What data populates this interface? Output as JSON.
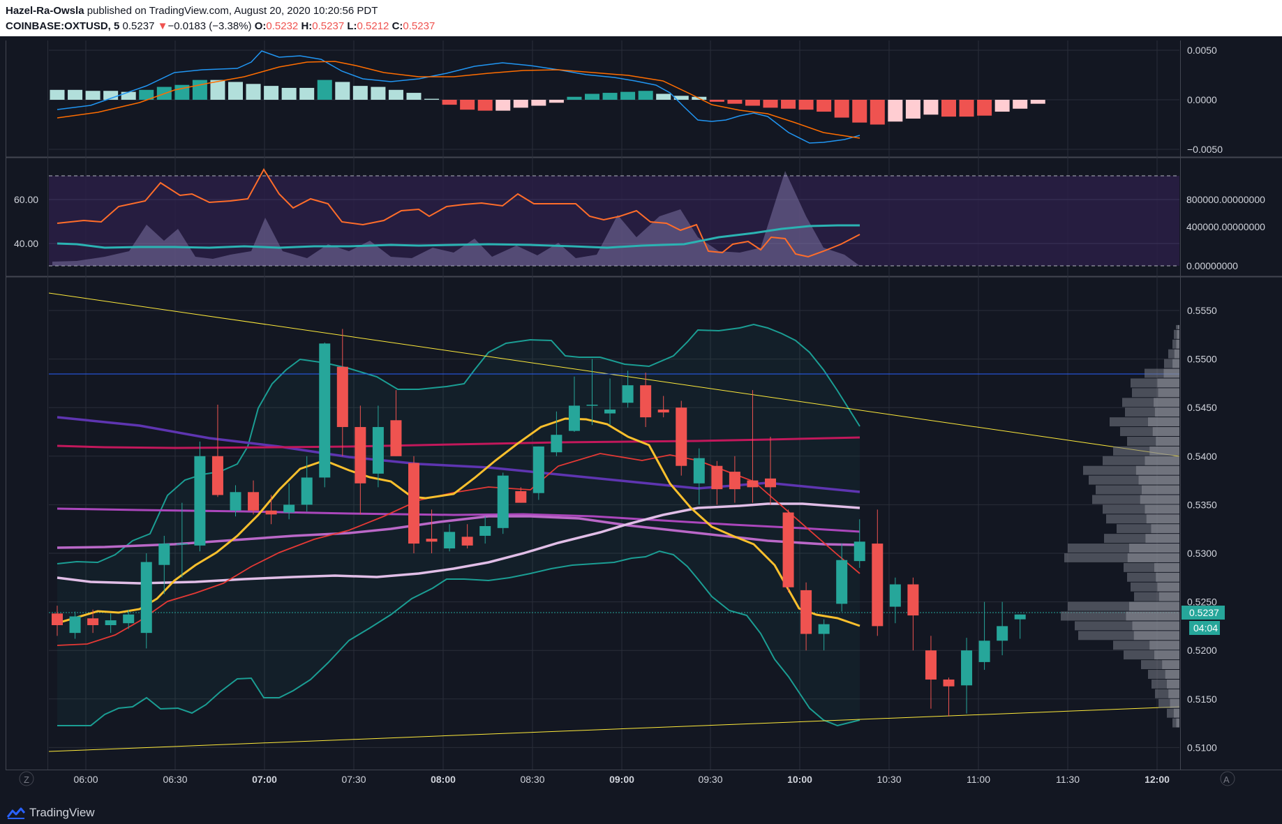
{
  "header": {
    "author": "Hazel-Ra-Owsla",
    "published": " published on TradingView.com, August 20, 2020 10:20:56 PDT",
    "symbol": "COINBASE:OXTUSD, 5",
    "last": "0.5237",
    "change_arrow": "▼",
    "change": "−0.0183 (−3.38%)",
    "o_label": "O:",
    "o": "0.5232",
    "h_label": "H:",
    "h": "0.5237",
    "l_label": "L:",
    "l": "0.5212",
    "c_label": "C:",
    "c": "0.5237"
  },
  "footer": {
    "brand": "TradingView",
    "left_btn": "Z",
    "right_btn": "A"
  },
  "colors": {
    "bg": "#131722",
    "up": "#26a69a",
    "down": "#ef5350",
    "grid": "#2a2e39"
  },
  "chart_data": [
    {
      "type": "candlestick",
      "panel": "price",
      "symbol": "COINBASE:OXTUSD",
      "interval": "5",
      "x_ticks": [
        "06:00",
        "06:30",
        "07:00",
        "07:30",
        "08:00",
        "08:30",
        "09:00",
        "09:30",
        "10:00",
        "10:30",
        "11:00",
        "11:30",
        "12:00"
      ],
      "y_ticks": [
        "0.5550",
        "0.5500",
        "0.5450",
        "0.5400",
        "0.5350",
        "0.5300",
        "0.5250",
        "0.5200",
        "0.5150",
        "0.5100"
      ],
      "ylim": [
        0.5082,
        0.5565
      ],
      "last_price_label": "0.5237",
      "countdown_label": "04:04",
      "candles": [
        {
          "t": "05:45",
          "o": 0.5238,
          "h": 0.5246,
          "l": 0.5215,
          "c": 0.5226
        },
        {
          "t": "05:50",
          "o": 0.5218,
          "h": 0.524,
          "l": 0.5212,
          "c": 0.5235
        },
        {
          "t": "05:55",
          "o": 0.5233,
          "h": 0.5242,
          "l": 0.5218,
          "c": 0.5226
        },
        {
          "t": "06:00",
          "o": 0.5226,
          "h": 0.5238,
          "l": 0.5218,
          "c": 0.5231
        },
        {
          "t": "06:05",
          "o": 0.5228,
          "h": 0.5242,
          "l": 0.5222,
          "c": 0.5237
        },
        {
          "t": "06:10",
          "o": 0.5218,
          "h": 0.53,
          "l": 0.5202,
          "c": 0.5291
        },
        {
          "t": "06:15",
          "o": 0.5288,
          "h": 0.5318,
          "l": 0.5258,
          "c": 0.531
        },
        {
          "t": "06:20",
          "o": 0.531,
          "h": 0.5352,
          "l": 0.5275,
          "c": 0.531
        },
        {
          "t": "06:25",
          "o": 0.5308,
          "h": 0.5415,
          "l": 0.5302,
          "c": 0.54
        },
        {
          "t": "06:30",
          "o": 0.54,
          "h": 0.5453,
          "l": 0.5358,
          "c": 0.536
        },
        {
          "t": "06:35",
          "o": 0.5344,
          "h": 0.537,
          "l": 0.5338,
          "c": 0.5363
        },
        {
          "t": "06:40",
          "o": 0.5363,
          "h": 0.5375,
          "l": 0.534,
          "c": 0.5344
        },
        {
          "t": "06:45",
          "o": 0.5344,
          "h": 0.536,
          "l": 0.533,
          "c": 0.534
        },
        {
          "t": "06:50",
          "o": 0.5342,
          "h": 0.5372,
          "l": 0.5335,
          "c": 0.535
        },
        {
          "t": "06:55",
          "o": 0.535,
          "h": 0.54,
          "l": 0.5343,
          "c": 0.5378
        },
        {
          "t": "07:00",
          "o": 0.5378,
          "h": 0.5517,
          "l": 0.5368,
          "c": 0.5516
        },
        {
          "t": "07:05",
          "o": 0.5492,
          "h": 0.5531,
          "l": 0.54,
          "c": 0.543
        },
        {
          "t": "07:10",
          "o": 0.543,
          "h": 0.5452,
          "l": 0.534,
          "c": 0.5372
        },
        {
          "t": "07:15",
          "o": 0.5382,
          "h": 0.5452,
          "l": 0.5368,
          "c": 0.543
        },
        {
          "t": "07:20",
          "o": 0.5437,
          "h": 0.5468,
          "l": 0.54,
          "c": 0.54
        },
        {
          "t": "07:25",
          "o": 0.5393,
          "h": 0.54,
          "l": 0.53,
          "c": 0.531
        },
        {
          "t": "07:30",
          "o": 0.5315,
          "h": 0.5345,
          "l": 0.53,
          "c": 0.5312
        },
        {
          "t": "07:35",
          "o": 0.5305,
          "h": 0.533,
          "l": 0.5302,
          "c": 0.5322
        },
        {
          "t": "07:40",
          "o": 0.5317,
          "h": 0.533,
          "l": 0.5305,
          "c": 0.5308
        },
        {
          "t": "07:45",
          "o": 0.5318,
          "h": 0.5338,
          "l": 0.531,
          "c": 0.5328
        },
        {
          "t": "07:50",
          "o": 0.5326,
          "h": 0.5383,
          "l": 0.532,
          "c": 0.538
        },
        {
          "t": "07:55",
          "o": 0.5364,
          "h": 0.5368,
          "l": 0.5352,
          "c": 0.5352
        },
        {
          "t": "08:00",
          "o": 0.5362,
          "h": 0.541,
          "l": 0.5355,
          "c": 0.541
        },
        {
          "t": "08:05",
          "o": 0.5404,
          "h": 0.5446,
          "l": 0.54,
          "c": 0.5422
        },
        {
          "t": "08:10",
          "o": 0.5426,
          "h": 0.5482,
          "l": 0.5425,
          "c": 0.5452
        },
        {
          "t": "08:15",
          "o": 0.5452,
          "h": 0.55,
          "l": 0.5432,
          "c": 0.5453
        },
        {
          "t": "08:20",
          "o": 0.5444,
          "h": 0.548,
          "l": 0.5432,
          "c": 0.5448
        },
        {
          "t": "08:25",
          "o": 0.5455,
          "h": 0.5488,
          "l": 0.545,
          "c": 0.5473
        },
        {
          "t": "08:30",
          "o": 0.5473,
          "h": 0.5486,
          "l": 0.543,
          "c": 0.544
        },
        {
          "t": "08:35",
          "o": 0.5448,
          "h": 0.5462,
          "l": 0.544,
          "c": 0.5445
        },
        {
          "t": "08:40",
          "o": 0.545,
          "h": 0.5457,
          "l": 0.538,
          "c": 0.539
        },
        {
          "t": "08:45",
          "o": 0.5372,
          "h": 0.5408,
          "l": 0.535,
          "c": 0.5398
        },
        {
          "t": "08:50",
          "o": 0.539,
          "h": 0.5395,
          "l": 0.535,
          "c": 0.5366
        },
        {
          "t": "08:55",
          "o": 0.5384,
          "h": 0.54,
          "l": 0.5352,
          "c": 0.5366
        },
        {
          "t": "09:00",
          "o": 0.5375,
          "h": 0.5468,
          "l": 0.5352,
          "c": 0.5368
        },
        {
          "t": "09:05",
          "o": 0.5377,
          "h": 0.542,
          "l": 0.535,
          "c": 0.5368
        },
        {
          "t": "09:10",
          "o": 0.5342,
          "h": 0.5345,
          "l": 0.526,
          "c": 0.5265
        },
        {
          "t": "09:15",
          "o": 0.5262,
          "h": 0.527,
          "l": 0.52,
          "c": 0.5217
        },
        {
          "t": "09:20",
          "o": 0.5217,
          "h": 0.5232,
          "l": 0.52,
          "c": 0.5227
        },
        {
          "t": "09:25",
          "o": 0.5248,
          "h": 0.531,
          "l": 0.524,
          "c": 0.5293
        },
        {
          "t": "09:30",
          "o": 0.5292,
          "h": 0.5335,
          "l": 0.5285,
          "c": 0.5312
        },
        {
          "t": "09:35",
          "o": 0.531,
          "h": 0.5345,
          "l": 0.5215,
          "c": 0.5225
        },
        {
          "t": "09:40",
          "o": 0.5245,
          "h": 0.5275,
          "l": 0.5228,
          "c": 0.5268
        },
        {
          "t": "09:45",
          "o": 0.5268,
          "h": 0.5275,
          "l": 0.52,
          "c": 0.5236
        },
        {
          "t": "09:50",
          "o": 0.52,
          "h": 0.5215,
          "l": 0.514,
          "c": 0.517
        },
        {
          "t": "09:55",
          "o": 0.517,
          "h": 0.5172,
          "l": 0.5132,
          "c": 0.5163
        },
        {
          "t": "10:00",
          "o": 0.5164,
          "h": 0.5213,
          "l": 0.5135,
          "c": 0.52
        },
        {
          "t": "10:05",
          "o": 0.5188,
          "h": 0.525,
          "l": 0.518,
          "c": 0.521
        },
        {
          "t": "10:10",
          "o": 0.521,
          "h": 0.525,
          "l": 0.5195,
          "c": 0.5225
        },
        {
          "t": "10:15",
          "o": 0.5232,
          "h": 0.5237,
          "l": 0.5212,
          "c": 0.5237
        }
      ]
    },
    {
      "type": "bar",
      "panel": "macd",
      "y_ticks": [
        "0.0050",
        "0.0000",
        "−0.0050"
      ],
      "ylim": [
        -0.0058,
        0.0066
      ]
    },
    {
      "type": "area",
      "panel": "oscillator",
      "left_ticks": [
        "60.00",
        "40.00"
      ],
      "right_ticks": [
        "800000.00000000",
        "400000.00000000",
        "0.00000000"
      ]
    }
  ]
}
